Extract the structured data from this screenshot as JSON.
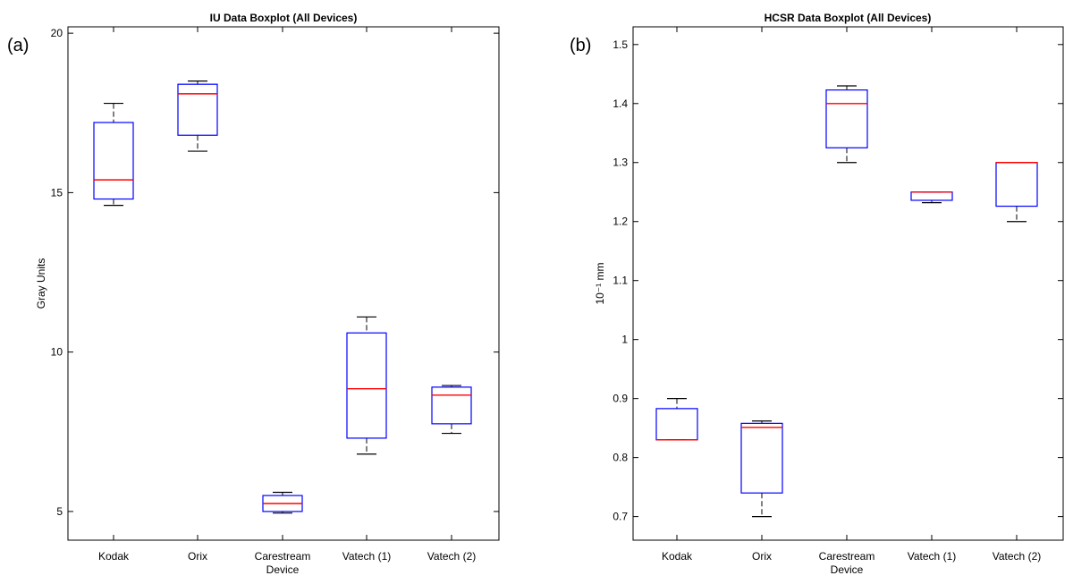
{
  "panels": {
    "a_label": "(a)",
    "b_label": "(b)"
  },
  "chart_data": [
    {
      "type": "boxplot",
      "title": "IU Data Boxplot (All Devices)",
      "xlabel": "Device",
      "ylabel": "Gray Units",
      "ylim": [
        4.1,
        20.2
      ],
      "yticks": [
        "5",
        "10",
        "15",
        "20"
      ],
      "categories": [
        "Kodak",
        "Orix",
        "Carestream",
        "Vatech (1)",
        "Vatech (2)"
      ],
      "boxes": [
        {
          "whisker_low": 14.6,
          "q1": 14.8,
          "median": 15.4,
          "q3": 17.2,
          "whisker_high": 17.8
        },
        {
          "whisker_low": 16.3,
          "q1": 16.8,
          "median": 18.1,
          "q3": 18.4,
          "whisker_high": 18.5
        },
        {
          "whisker_low": 4.95,
          "q1": 5.0,
          "median": 5.25,
          "q3": 5.5,
          "whisker_high": 5.6
        },
        {
          "whisker_low": 6.8,
          "q1": 7.3,
          "median": 8.85,
          "q3": 10.6,
          "whisker_high": 11.1
        },
        {
          "whisker_low": 7.45,
          "q1": 7.75,
          "median": 8.65,
          "q3": 8.9,
          "whisker_high": 8.95
        }
      ],
      "box_color": "#0000ff",
      "median_color": "#ff0000",
      "whisker_color": "#000000"
    },
    {
      "type": "boxplot",
      "title": "HCSR Data Boxplot (All Devices)",
      "xlabel": "Device",
      "ylabel": "10⁻¹ mm",
      "ylim": [
        0.66,
        1.53
      ],
      "yticks": [
        "0.7",
        "0.8",
        "0.9",
        "1",
        "1.1",
        "1.2",
        "1.3",
        "1.4",
        "1.5"
      ],
      "categories": [
        "Kodak",
        "Orix",
        "Carestream",
        "Vatech (1)",
        "Vatech (2)"
      ],
      "boxes": [
        {
          "whisker_low": 0.83,
          "q1": 0.83,
          "median": 0.83,
          "q3": 0.883,
          "whisker_high": 0.9
        },
        {
          "whisker_low": 0.7,
          "q1": 0.74,
          "median": 0.851,
          "q3": 0.858,
          "whisker_high": 0.862
        },
        {
          "whisker_low": 1.3,
          "q1": 1.325,
          "median": 1.4,
          "q3": 1.423,
          "whisker_high": 1.43
        },
        {
          "whisker_low": 1.232,
          "q1": 1.236,
          "median": 1.25,
          "q3": 1.25,
          "whisker_high": 1.25
        },
        {
          "whisker_low": 1.2,
          "q1": 1.226,
          "median": 1.3,
          "q3": 1.3,
          "whisker_high": 1.3
        }
      ],
      "box_color": "#0000ff",
      "median_color": "#ff0000",
      "whisker_color": "#000000"
    }
  ]
}
